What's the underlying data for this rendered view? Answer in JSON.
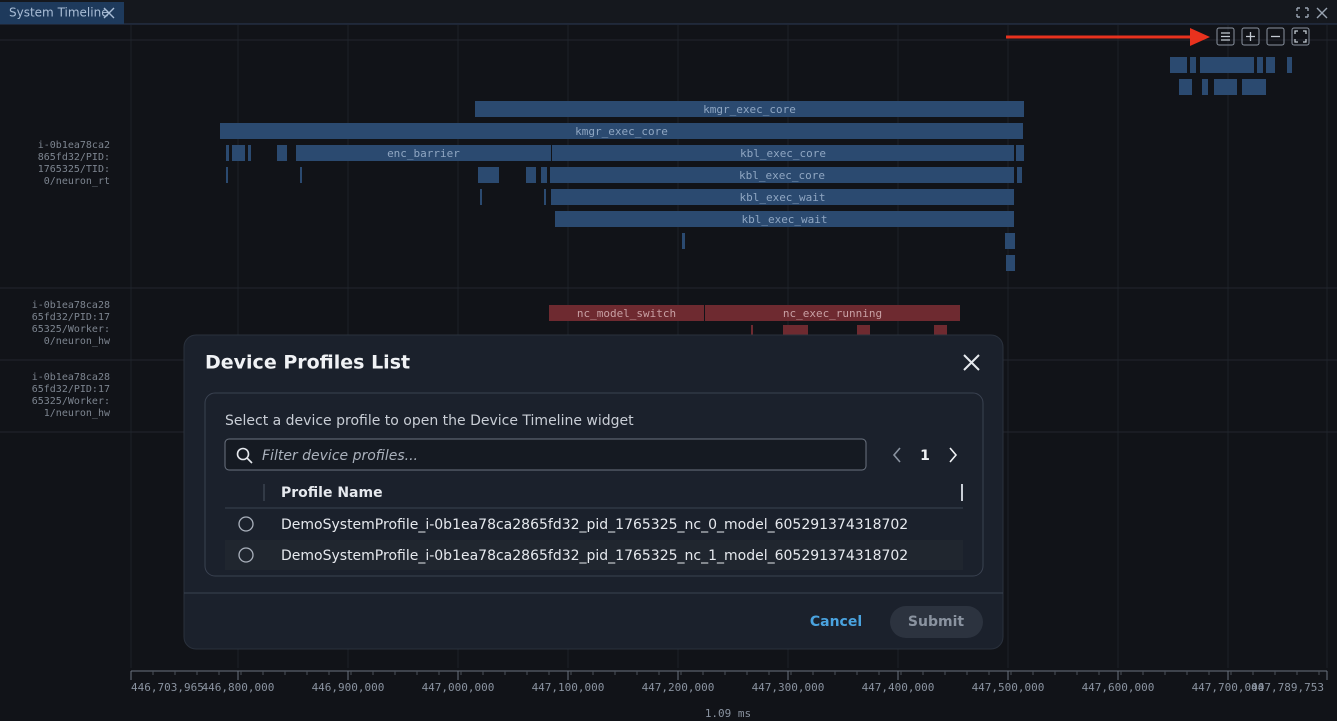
{
  "tab": {
    "title": "System Timeline"
  },
  "rows": [
    {
      "label": [
        "i-0b1ea78ca2",
        "865fd32/PID:",
        "1765325/TID:",
        "0/neuron_rt"
      ]
    },
    {
      "label": [
        "i-0b1ea78ca28",
        "65fd32/PID:17",
        "65325/Worker:",
        "0/neuron_hw"
      ]
    },
    {
      "label": [
        "i-0b1ea78ca28",
        "65fd32/PID:17",
        "65325/Worker:",
        "1/neuron_hw"
      ]
    }
  ],
  "bars": [
    "kmgr_exec_core",
    "kmgr_exec_core",
    "enc_barrier",
    "kbl_exec_core",
    "kbl_exec_core",
    "kbl_exec_wait",
    "kbl_exec_wait",
    "nc_model_switch",
    "nc_exec_running"
  ],
  "axis": {
    "ticks": [
      "446,703,965",
      "446,800,000",
      "446,900,000",
      "447,000,000",
      "447,100,000",
      "447,200,000",
      "447,300,000",
      "447,400,000",
      "447,500,000",
      "447,600,000",
      "447,700,000",
      "447,789,753"
    ],
    "span": "1.09 ms"
  },
  "dialog": {
    "title": "Device Profiles List",
    "instruction": "Select a device profile to open the Device Timeline widget",
    "search_placeholder": "Filter device profiles...",
    "page": "1",
    "column": "Profile Name",
    "rows": [
      "DemoSystemProfile_i-0b1ea78ca2865fd32_pid_1765325_nc_0_model_605291374318702",
      "DemoSystemProfile_i-0b1ea78ca2865fd32_pid_1765325_nc_1_model_605291374318702"
    ],
    "cancel": "Cancel",
    "submit": "Submit"
  }
}
